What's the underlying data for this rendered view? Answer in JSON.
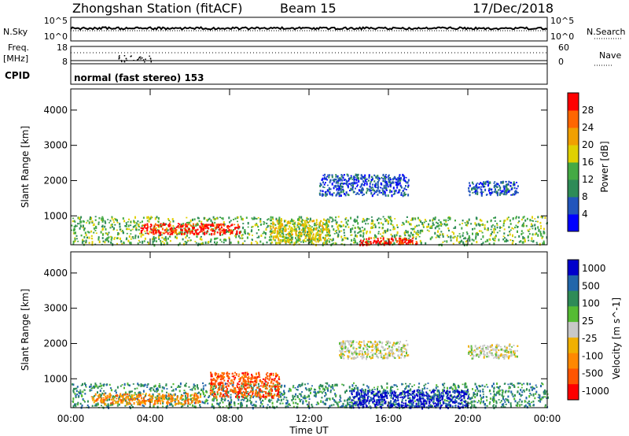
{
  "header": {
    "station": "Zhongshan Station (fitACF)",
    "beam": "Beam 15",
    "date": "17/Dec/2018"
  },
  "left_labels": {
    "nsky": "N.Sky",
    "freq": "Freq.",
    "freq_unit": "[MHz]",
    "cpid": "CPID",
    "nsky_top": "10^5",
    "nsky_bottom": "10^0",
    "freq_top": "18",
    "freq_bottom": "8"
  },
  "right_labels": {
    "nsearch": "N.Search",
    "nave": "Nave",
    "nsearch_top": "10^5",
    "nsearch_bottom": "10^0",
    "nave_top": "60",
    "nave_bottom": "0"
  },
  "cpid_text": "normal (fast stereo) 153",
  "colors": {
    "power_scale": [
      "#0000ff",
      "#2255bb",
      "#2e8b57",
      "#44aa44",
      "#e0d000",
      "#f0a000",
      "#ff6600",
      "#ff0000"
    ],
    "velocity_scale": [
      "#0000cc",
      "#2266aa",
      "#2e8b57",
      "#55bb33",
      "#c8c8c8",
      "#f0b000",
      "#ff8800",
      "#ff5500",
      "#ff0000"
    ]
  },
  "chart_data": [
    {
      "type": "heatmap",
      "name": "power",
      "xlabel": "Time UT",
      "ylabel": "Slant Range [km]",
      "colorbar_label": "Power [dB]",
      "colorbar_ticks": [
        "4",
        "8",
        "12",
        "16",
        "20",
        "24",
        "28"
      ],
      "x_ticks": [
        "00:00",
        "04:00",
        "08:00",
        "12:00",
        "16:00",
        "20:00",
        "00:00"
      ],
      "y_ticks": [
        "1000",
        "2000",
        "3000",
        "4000"
      ],
      "xlim_hours": [
        0,
        24
      ],
      "ylim_km": [
        180,
        4600
      ],
      "regions": [
        {
          "t0": 0.0,
          "t1": 24.0,
          "r0": 200,
          "r1": 1000,
          "level": 3
        },
        {
          "t0": 3.5,
          "t1": 8.5,
          "r0": 500,
          "r1": 800,
          "level": 7
        },
        {
          "t0": 10.0,
          "t1": 13.0,
          "r0": 250,
          "r1": 900,
          "level": 4
        },
        {
          "t0": 14.5,
          "t1": 17.5,
          "r0": 200,
          "r1": 400,
          "level": 7
        },
        {
          "t0": 12.5,
          "t1": 17.0,
          "r0": 1600,
          "r1": 2200,
          "level": 1
        },
        {
          "t0": 20.0,
          "t1": 22.5,
          "r0": 1600,
          "r1": 2000,
          "level": 1
        }
      ]
    },
    {
      "type": "heatmap",
      "name": "velocity",
      "xlabel": "Time UT",
      "ylabel": "Slant Range [km]",
      "colorbar_label": "Velocity [m s^-1]",
      "colorbar_ticks": [
        "1000",
        "500",
        "100",
        "25",
        "-25",
        "-100",
        "-500",
        "-1000"
      ],
      "x_ticks": [
        "00:00",
        "04:00",
        "08:00",
        "12:00",
        "16:00",
        "20:00",
        "00:00"
      ],
      "y_ticks": [
        "1000",
        "2000",
        "3000",
        "4000"
      ],
      "xlim_hours": [
        0,
        24
      ],
      "ylim_km": [
        180,
        4600
      ],
      "regions": [
        {
          "t0": 0.0,
          "t1": 24.0,
          "r0": 200,
          "r1": 900,
          "level": 2
        },
        {
          "t0": 1.0,
          "t1": 6.5,
          "r0": 300,
          "r1": 600,
          "level": 6
        },
        {
          "t0": 7.0,
          "t1": 10.5,
          "r0": 500,
          "r1": 1200,
          "level": 7
        },
        {
          "t0": 13.5,
          "t1": 17.0,
          "r0": 1600,
          "r1": 2100,
          "level": 4
        },
        {
          "t0": 20.0,
          "t1": 22.5,
          "r0": 1600,
          "r1": 2000,
          "level": 4
        },
        {
          "t0": 14.0,
          "t1": 20.0,
          "r0": 200,
          "r1": 700,
          "level": 0
        }
      ]
    }
  ]
}
